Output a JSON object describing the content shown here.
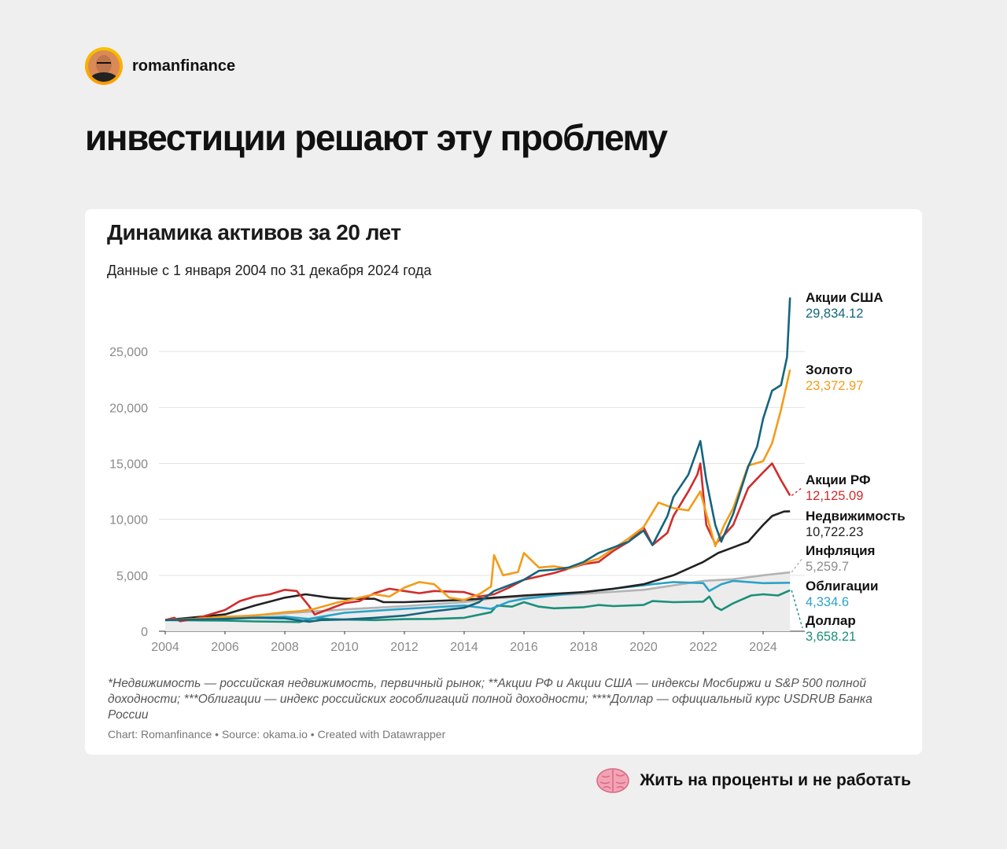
{
  "author": {
    "name": "romanfinance",
    "avatar_icon": "avatar-photo"
  },
  "headline": "инвестиции решают эту проблему",
  "footer": {
    "text": "Жить на проценты и не работать",
    "icon": "brain-icon"
  },
  "card": {
    "footnote": "*Недвижимость — российская недвижимость, первичный рынок; **Акции РФ и Акции США — индексы Мосбиржи и S&P 500 полной доходности; ***Облигации — индекс российских гособлигаций полной доходности; ****Доллар — официальный курс USDRUB Банка России",
    "credits": "Chart: Romanfinance • Source: okama.io • Created with Datawrapper"
  },
  "chart_data": {
    "type": "line",
    "title": "Динамика активов за 20 лет",
    "subtitle": "Данные с 1 января 2004 по 31 декабря 2024 года",
    "xlim": [
      2004,
      2025
    ],
    "ylim": [
      0,
      30000
    ],
    "x_ticks": [
      "2004",
      "2006",
      "2008",
      "2010",
      "2012",
      "2014",
      "2016",
      "2018",
      "2020",
      "2022",
      "2024"
    ],
    "y_ticks": [
      "0",
      "5,000",
      "10,000",
      "15,000",
      "20,000",
      "25,000"
    ],
    "grid": true,
    "legend": "right-end labels",
    "series": [
      {
        "name": "Инфляция",
        "final_label": "5,259.7",
        "color": "#b3b3b3",
        "area": true,
        "points": [
          [
            2004,
            1000
          ],
          [
            2006,
            1250
          ],
          [
            2008,
            1600
          ],
          [
            2010,
            1950
          ],
          [
            2012,
            2250
          ],
          [
            2014,
            2600
          ],
          [
            2015,
            2950
          ],
          [
            2016,
            3100
          ],
          [
            2018,
            3350
          ],
          [
            2020,
            3700
          ],
          [
            2022,
            4500
          ],
          [
            2023,
            4650
          ],
          [
            2024,
            5000
          ],
          [
            2024.9,
            5259.7
          ]
        ]
      },
      {
        "name": "Доллар",
        "final_label": "3,658.21",
        "color": "#1a8f7a",
        "points": [
          [
            2004,
            1000
          ],
          [
            2005,
            980
          ],
          [
            2006,
            950
          ],
          [
            2007,
            880
          ],
          [
            2008,
            850
          ],
          [
            2008.5,
            820
          ],
          [
            2009,
            1180
          ],
          [
            2009.5,
            1080
          ],
          [
            2010,
            1050
          ],
          [
            2011,
            1000
          ],
          [
            2012,
            1080
          ],
          [
            2013,
            1100
          ],
          [
            2014,
            1200
          ],
          [
            2014.9,
            1700
          ],
          [
            2015.1,
            2300
          ],
          [
            2015.6,
            2200
          ],
          [
            2016,
            2600
          ],
          [
            2016.5,
            2200
          ],
          [
            2017,
            2050
          ],
          [
            2018,
            2150
          ],
          [
            2018.5,
            2350
          ],
          [
            2019,
            2250
          ],
          [
            2020,
            2350
          ],
          [
            2020.3,
            2700
          ],
          [
            2021,
            2600
          ],
          [
            2022,
            2650
          ],
          [
            2022.2,
            3100
          ],
          [
            2022.4,
            2200
          ],
          [
            2022.6,
            1900
          ],
          [
            2023,
            2500
          ],
          [
            2023.6,
            3200
          ],
          [
            2024,
            3300
          ],
          [
            2024.5,
            3200
          ],
          [
            2024.9,
            3658.21
          ]
        ]
      },
      {
        "name": "Облигации",
        "final_label": "4,334.6",
        "color": "#2aa2c9",
        "points": [
          [
            2004,
            1000
          ],
          [
            2006,
            1150
          ],
          [
            2008,
            1300
          ],
          [
            2008.8,
            1100
          ],
          [
            2010,
            1650
          ],
          [
            2012,
            2000
          ],
          [
            2014,
            2300
          ],
          [
            2014.9,
            2000
          ],
          [
            2015.5,
            2650
          ],
          [
            2016,
            2900
          ],
          [
            2018,
            3500
          ],
          [
            2020,
            4100
          ],
          [
            2020.3,
            4200
          ],
          [
            2021,
            4400
          ],
          [
            2022,
            4300
          ],
          [
            2022.2,
            3600
          ],
          [
            2022.6,
            4200
          ],
          [
            2023,
            4500
          ],
          [
            2024,
            4300
          ],
          [
            2024.9,
            4334.6
          ]
        ]
      },
      {
        "name": "Недвижимость",
        "final_label": "10,722.23",
        "color": "#222222",
        "points": [
          [
            2004,
            1000
          ],
          [
            2006,
            1500
          ],
          [
            2007,
            2300
          ],
          [
            2008,
            3000
          ],
          [
            2008.7,
            3300
          ],
          [
            2009.5,
            3000
          ],
          [
            2010,
            2900
          ],
          [
            2011,
            2900
          ],
          [
            2011.3,
            2600
          ],
          [
            2012,
            2600
          ],
          [
            2014,
            2800
          ],
          [
            2016,
            3200
          ],
          [
            2018,
            3500
          ],
          [
            2019,
            3800
          ],
          [
            2020,
            4200
          ],
          [
            2021,
            5000
          ],
          [
            2022,
            6200
          ],
          [
            2022.5,
            7000
          ],
          [
            2023,
            7500
          ],
          [
            2023.5,
            8000
          ],
          [
            2024,
            9500
          ],
          [
            2024.3,
            10300
          ],
          [
            2024.7,
            10700
          ],
          [
            2024.9,
            10722.23
          ]
        ]
      },
      {
        "name": "Акции РФ",
        "final_label": "12,125.09",
        "color": "#d12c2c",
        "points": [
          [
            2004,
            1000
          ],
          [
            2004.3,
            1200
          ],
          [
            2004.5,
            900
          ],
          [
            2005,
            1100
          ],
          [
            2006,
            1900
          ],
          [
            2006.5,
            2700
          ],
          [
            2007,
            3100
          ],
          [
            2007.5,
            3300
          ],
          [
            2008,
            3700
          ],
          [
            2008.4,
            3600
          ],
          [
            2008.8,
            2300
          ],
          [
            2009,
            1500
          ],
          [
            2009.5,
            2000
          ],
          [
            2010,
            2500
          ],
          [
            2010.5,
            2700
          ],
          [
            2011,
            3400
          ],
          [
            2011.5,
            3800
          ],
          [
            2012,
            3600
          ],
          [
            2012.5,
            3400
          ],
          [
            2013,
            3600
          ],
          [
            2014,
            3500
          ],
          [
            2014.5,
            3100
          ],
          [
            2015,
            3300
          ],
          [
            2015.5,
            3900
          ],
          [
            2016,
            4600
          ],
          [
            2017,
            5200
          ],
          [
            2017.5,
            5600
          ],
          [
            2018,
            6000
          ],
          [
            2018.5,
            6200
          ],
          [
            2019,
            7200
          ],
          [
            2019.5,
            8000
          ],
          [
            2020,
            9300
          ],
          [
            2020.3,
            7700
          ],
          [
            2020.8,
            8800
          ],
          [
            2021,
            10300
          ],
          [
            2021.5,
            12500
          ],
          [
            2021.8,
            14000
          ],
          [
            2021.9,
            15000
          ],
          [
            2022.1,
            9500
          ],
          [
            2022.4,
            7800
          ],
          [
            2022.7,
            8600
          ],
          [
            2023,
            9500
          ],
          [
            2023.5,
            12800
          ],
          [
            2024,
            14200
          ],
          [
            2024.3,
            15000
          ],
          [
            2024.6,
            13500
          ],
          [
            2024.9,
            12125.09
          ]
        ]
      },
      {
        "name": "Золото",
        "final_label": "23,372.97",
        "color": "#f39c1a",
        "points": [
          [
            2004,
            1000
          ],
          [
            2005,
            1100
          ],
          [
            2006,
            1300
          ],
          [
            2007,
            1400
          ],
          [
            2008,
            1700
          ],
          [
            2008.5,
            1800
          ],
          [
            2009,
            2000
          ],
          [
            2009.8,
            2600
          ],
          [
            2010,
            2700
          ],
          [
            2011,
            3300
          ],
          [
            2011.5,
            3100
          ],
          [
            2012,
            3900
          ],
          [
            2012.5,
            4400
          ],
          [
            2013,
            4200
          ],
          [
            2013.5,
            3000
          ],
          [
            2014,
            2800
          ],
          [
            2014.5,
            3300
          ],
          [
            2014.9,
            4000
          ],
          [
            2015,
            6800
          ],
          [
            2015.3,
            5000
          ],
          [
            2015.8,
            5300
          ],
          [
            2016,
            7000
          ],
          [
            2016.5,
            5700
          ],
          [
            2017,
            5800
          ],
          [
            2017.5,
            5600
          ],
          [
            2018,
            6100
          ],
          [
            2018.5,
            6500
          ],
          [
            2019,
            7400
          ],
          [
            2019.5,
            8300
          ],
          [
            2020,
            9300
          ],
          [
            2020.5,
            11500
          ],
          [
            2021,
            11000
          ],
          [
            2021.5,
            10800
          ],
          [
            2021.9,
            12500
          ],
          [
            2022.1,
            10500
          ],
          [
            2022.4,
            7600
          ],
          [
            2022.7,
            9500
          ],
          [
            2023,
            11000
          ],
          [
            2023.5,
            14800
          ],
          [
            2024,
            15200
          ],
          [
            2024.3,
            16800
          ],
          [
            2024.6,
            19800
          ],
          [
            2024.9,
            23372.97
          ]
        ]
      },
      {
        "name": "Акции США",
        "final_label": "29,834.12",
        "color": "#15647e",
        "points": [
          [
            2004,
            1000
          ],
          [
            2005,
            1050
          ],
          [
            2006,
            1100
          ],
          [
            2007,
            1200
          ],
          [
            2008,
            1150
          ],
          [
            2008.8,
            850
          ],
          [
            2009.2,
            1000
          ],
          [
            2010,
            1050
          ],
          [
            2011,
            1200
          ],
          [
            2012,
            1400
          ],
          [
            2013,
            1800
          ],
          [
            2014,
            2100
          ],
          [
            2014.5,
            2600
          ],
          [
            2015,
            3600
          ],
          [
            2015.5,
            4100
          ],
          [
            2016,
            4600
          ],
          [
            2016.5,
            5400
          ],
          [
            2017,
            5500
          ],
          [
            2017.5,
            5700
          ],
          [
            2018,
            6200
          ],
          [
            2018.5,
            7000
          ],
          [
            2019,
            7500
          ],
          [
            2019.5,
            8000
          ],
          [
            2020,
            9000
          ],
          [
            2020.3,
            7700
          ],
          [
            2020.8,
            10300
          ],
          [
            2021,
            12000
          ],
          [
            2021.5,
            14000
          ],
          [
            2021.9,
            17000
          ],
          [
            2022.1,
            13500
          ],
          [
            2022.4,
            9500
          ],
          [
            2022.6,
            8000
          ],
          [
            2023,
            10500
          ],
          [
            2023.5,
            14700
          ],
          [
            2023.8,
            16500
          ],
          [
            2024,
            19000
          ],
          [
            2024.3,
            21500
          ],
          [
            2024.6,
            22000
          ],
          [
            2024.8,
            24500
          ],
          [
            2024.9,
            29834.12
          ]
        ]
      }
    ]
  }
}
